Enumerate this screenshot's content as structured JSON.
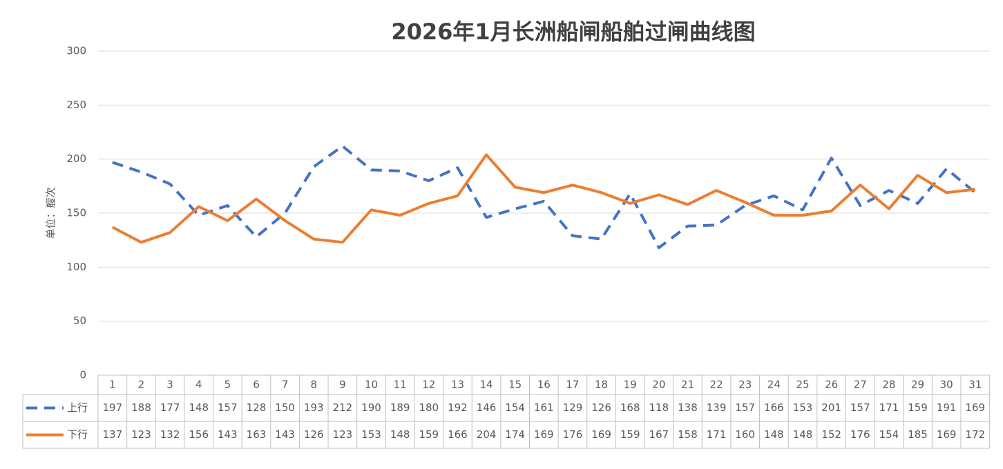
{
  "chart_data": {
    "type": "line",
    "title": "2026年1月长洲船闸船舶过闸曲线图",
    "y_label": "单位：艘次",
    "categories": [
      "1",
      "2",
      "3",
      "4",
      "5",
      "6",
      "7",
      "8",
      "9",
      "10",
      "11",
      "12",
      "13",
      "14",
      "15",
      "16",
      "17",
      "18",
      "19",
      "20",
      "21",
      "22",
      "23",
      "24",
      "25",
      "26",
      "27",
      "28",
      "29",
      "30",
      "31"
    ],
    "series": [
      {
        "name": "上行",
        "color": "#4472c4",
        "dashed": true,
        "values": [
          197,
          188,
          177,
          148,
          157,
          128,
          150,
          193,
          212,
          190,
          189,
          180,
          192,
          146,
          154,
          161,
          129,
          126,
          168,
          118,
          138,
          139,
          157,
          166,
          153,
          201,
          157,
          171,
          159,
          191,
          169
        ]
      },
      {
        "name": "下行",
        "color": "#ed7d31",
        "dashed": false,
        "values": [
          137,
          123,
          132,
          156,
          143,
          163,
          143,
          126,
          123,
          153,
          148,
          159,
          166,
          204,
          174,
          169,
          176,
          169,
          159,
          167,
          158,
          171,
          160,
          148,
          148,
          152,
          176,
          154,
          185,
          169,
          172
        ]
      }
    ],
    "ylim": [
      0,
      300
    ],
    "yticks": [
      0,
      50,
      100,
      150,
      200,
      250,
      300
    ],
    "grid": true,
    "data_table": true
  }
}
